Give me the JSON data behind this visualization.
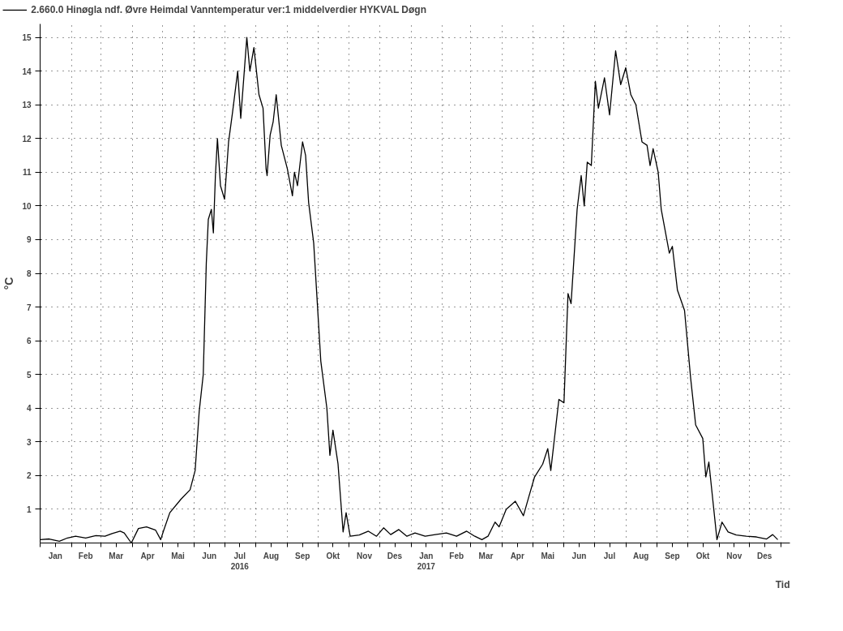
{
  "chart_data": {
    "type": "line",
    "ylabel": "°C",
    "xlabel": "Tid",
    "x": [
      "2016-01-01",
      "2016-01-10",
      "2016-01-20",
      "2016-01-28",
      "2016-02-05",
      "2016-02-15",
      "2016-02-25",
      "2016-03-05",
      "2016-03-12",
      "2016-03-20",
      "2016-03-24",
      "2016-03-31",
      "2016-04-07",
      "2016-04-15",
      "2016-04-24",
      "2016-04-29",
      "2016-05-02",
      "2016-05-08",
      "2016-05-19",
      "2016-05-28",
      "2016-06-02",
      "2016-06-06",
      "2016-06-10",
      "2016-06-13",
      "2016-06-15",
      "2016-06-18",
      "2016-06-20",
      "2016-06-22",
      "2016-06-24",
      "2016-06-27",
      "2016-07-01",
      "2016-07-05",
      "2016-07-09",
      "2016-07-14",
      "2016-07-17",
      "2016-07-23",
      "2016-07-26",
      "2016-07-30",
      "2016-08-04",
      "2016-08-08",
      "2016-08-11",
      "2016-08-12",
      "2016-08-15",
      "2016-08-18",
      "2016-08-21",
      "2016-08-26",
      "2016-09-01",
      "2016-09-06",
      "2016-09-08",
      "2016-09-11",
      "2016-09-16",
      "2016-09-19",
      "2016-09-22",
      "2016-09-27",
      "2016-10-04",
      "2016-10-10",
      "2016-10-13",
      "2016-10-16",
      "2016-10-21",
      "2016-10-26",
      "2016-10-29",
      "2016-11-02",
      "2016-11-11",
      "2016-11-20",
      "2016-11-28",
      "2016-12-05",
      "2016-12-12",
      "2016-12-20",
      "2016-12-28",
      "2017-01-05",
      "2017-01-15",
      "2017-01-25",
      "2017-02-05",
      "2017-02-15",
      "2017-02-25",
      "2017-03-05",
      "2017-03-12",
      "2017-03-18",
      "2017-03-25",
      "2017-03-29",
      "2017-04-05",
      "2017-04-14",
      "2017-04-22",
      "2017-04-27",
      "2017-05-03",
      "2017-05-11",
      "2017-05-16",
      "2017-05-19",
      "2017-05-27",
      "2017-06-01",
      "2017-06-05",
      "2017-06-08",
      "2017-06-14",
      "2017-06-18",
      "2017-06-21",
      "2017-06-24",
      "2017-06-28",
      "2017-07-02",
      "2017-07-05",
      "2017-07-11",
      "2017-07-16",
      "2017-07-22",
      "2017-07-27",
      "2017-08-01",
      "2017-08-06",
      "2017-08-11",
      "2017-08-17",
      "2017-08-22",
      "2017-08-25",
      "2017-08-28",
      "2017-09-02",
      "2017-09-05",
      "2017-09-13",
      "2017-09-16",
      "2017-09-21",
      "2017-09-28",
      "2017-10-04",
      "2017-10-09",
      "2017-10-16",
      "2017-10-19",
      "2017-10-22",
      "2017-10-30",
      "2017-11-04",
      "2017-11-10",
      "2017-11-18",
      "2017-11-28",
      "2017-12-08",
      "2017-12-18",
      "2017-12-24",
      "2017-12-29"
    ],
    "series": [
      {
        "name": "2.660.0 Hinøgla ndf. Øvre Heimdal Vanntemperatur ver:1 middelverdier HYKVAL Døgn",
        "color": "#000000",
        "values": [
          0.1,
          0.12,
          0.05,
          0.15,
          0.2,
          0.15,
          0.22,
          0.2,
          0.28,
          0.35,
          0.3,
          0.0,
          0.43,
          0.48,
          0.38,
          0.1,
          0.38,
          0.9,
          1.3,
          1.58,
          2.15,
          3.9,
          5.0,
          8.3,
          9.6,
          9.9,
          9.2,
          10.9,
          12.0,
          10.6,
          10.2,
          11.9,
          12.8,
          14.0,
          12.6,
          15.0,
          14.0,
          14.7,
          13.3,
          12.9,
          11.1,
          10.9,
          12.1,
          12.5,
          13.3,
          11.8,
          11.1,
          10.3,
          11.0,
          10.6,
          11.9,
          11.5,
          10.1,
          8.9,
          5.4,
          4.0,
          2.6,
          3.35,
          2.35,
          0.33,
          0.9,
          0.2,
          0.24,
          0.35,
          0.2,
          0.45,
          0.25,
          0.4,
          0.2,
          0.3,
          0.2,
          0.25,
          0.3,
          0.2,
          0.35,
          0.2,
          0.1,
          0.2,
          0.62,
          0.48,
          1.0,
          1.24,
          0.81,
          1.34,
          1.96,
          2.34,
          2.8,
          2.15,
          4.26,
          4.16,
          7.4,
          7.1,
          9.9,
          10.9,
          10.0,
          11.3,
          11.2,
          13.7,
          12.9,
          13.8,
          12.7,
          14.6,
          13.6,
          14.1,
          13.3,
          13.0,
          11.9,
          11.8,
          11.2,
          11.7,
          11.0,
          9.9,
          8.6,
          8.8,
          7.5,
          6.9,
          4.9,
          3.5,
          3.1,
          1.96,
          2.4,
          0.1,
          0.62,
          0.33,
          0.24,
          0.2,
          0.18,
          0.12,
          0.25,
          0.1
        ]
      }
    ],
    "xlim": [
      "2016-01-01",
      "2018-01-10"
    ],
    "xticks": [
      {
        "value": "2016-01-01",
        "label": null
      },
      {
        "value": "2016-01-16",
        "label": "Jan"
      },
      {
        "value": "2016-02-01",
        "label": null
      },
      {
        "value": "2016-02-15",
        "label": "Feb"
      },
      {
        "value": "2016-03-01",
        "label": null
      },
      {
        "value": "2016-03-16",
        "label": "Mar"
      },
      {
        "value": "2016-04-01",
        "label": null
      },
      {
        "value": "2016-04-16",
        "label": "Apr"
      },
      {
        "value": "2016-05-01",
        "label": null
      },
      {
        "value": "2016-05-16",
        "label": "Mai"
      },
      {
        "value": "2016-06-01",
        "label": null
      },
      {
        "value": "2016-06-16",
        "label": "Jun"
      },
      {
        "value": "2016-07-01",
        "label": null
      },
      {
        "value": "2016-07-16",
        "label": "Jul\n2016"
      },
      {
        "value": "2016-08-01",
        "label": null
      },
      {
        "value": "2016-08-16",
        "label": "Aug"
      },
      {
        "value": "2016-09-01",
        "label": null
      },
      {
        "value": "2016-09-16",
        "label": "Sep"
      },
      {
        "value": "2016-10-01",
        "label": null
      },
      {
        "value": "2016-10-16",
        "label": "Okt"
      },
      {
        "value": "2016-11-01",
        "label": null
      },
      {
        "value": "2016-11-16",
        "label": "Nov"
      },
      {
        "value": "2016-12-01",
        "label": null
      },
      {
        "value": "2016-12-16",
        "label": "Des"
      },
      {
        "value": "2017-01-01",
        "label": null
      },
      {
        "value": "2017-01-16",
        "label": "Jan\n2017"
      },
      {
        "value": "2017-02-01",
        "label": null
      },
      {
        "value": "2017-02-15",
        "label": "Feb"
      },
      {
        "value": "2017-03-01",
        "label": null
      },
      {
        "value": "2017-03-16",
        "label": "Mar"
      },
      {
        "value": "2017-04-01",
        "label": null
      },
      {
        "value": "2017-04-16",
        "label": "Apr"
      },
      {
        "value": "2017-05-01",
        "label": null
      },
      {
        "value": "2017-05-16",
        "label": "Mai"
      },
      {
        "value": "2017-06-01",
        "label": null
      },
      {
        "value": "2017-06-16",
        "label": "Jun"
      },
      {
        "value": "2017-07-01",
        "label": null
      },
      {
        "value": "2017-07-16",
        "label": "Jul"
      },
      {
        "value": "2017-08-01",
        "label": null
      },
      {
        "value": "2017-08-16",
        "label": "Aug"
      },
      {
        "value": "2017-09-01",
        "label": null
      },
      {
        "value": "2017-09-16",
        "label": "Sep"
      },
      {
        "value": "2017-10-01",
        "label": null
      },
      {
        "value": "2017-10-16",
        "label": "Okt"
      },
      {
        "value": "2017-11-01",
        "label": null
      },
      {
        "value": "2017-11-16",
        "label": "Nov"
      },
      {
        "value": "2017-12-01",
        "label": null
      },
      {
        "value": "2017-12-16",
        "label": "Des"
      },
      {
        "value": "2018-01-01",
        "label": null
      }
    ],
    "ylim": [
      0,
      15.4
    ],
    "yticks": [
      1,
      2,
      3,
      4,
      5,
      6,
      7,
      8,
      9,
      10,
      11,
      12,
      13,
      14,
      15
    ],
    "grid": true,
    "legend": "top left",
    "line_style": "solid",
    "marker": "none"
  }
}
